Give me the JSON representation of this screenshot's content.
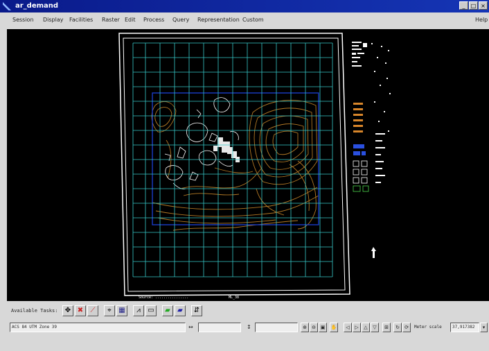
{
  "window": {
    "title": "ar_demand"
  },
  "menu": {
    "items": [
      "Session",
      "Display",
      "Facilities",
      "Raster",
      "Edit",
      "Process",
      "Query",
      "Representation",
      "Custom"
    ],
    "help": "Help"
  },
  "toolbar": {
    "label": "Available Tasks:"
  },
  "status": {
    "coord_field": "ACS 84 UTM Zone 39",
    "meter_label": "Meter scale",
    "meter_value": "37,917382"
  },
  "canvas": {
    "bottom_left_note": "Source: ................",
    "bottom_center_note": "ML_38"
  },
  "colors": {
    "grid": "#36c8c8",
    "contours": "#c8872a",
    "frame": "#ffffff",
    "aoi": "#1a3cc8",
    "titlebar": "#0f2a9e"
  }
}
